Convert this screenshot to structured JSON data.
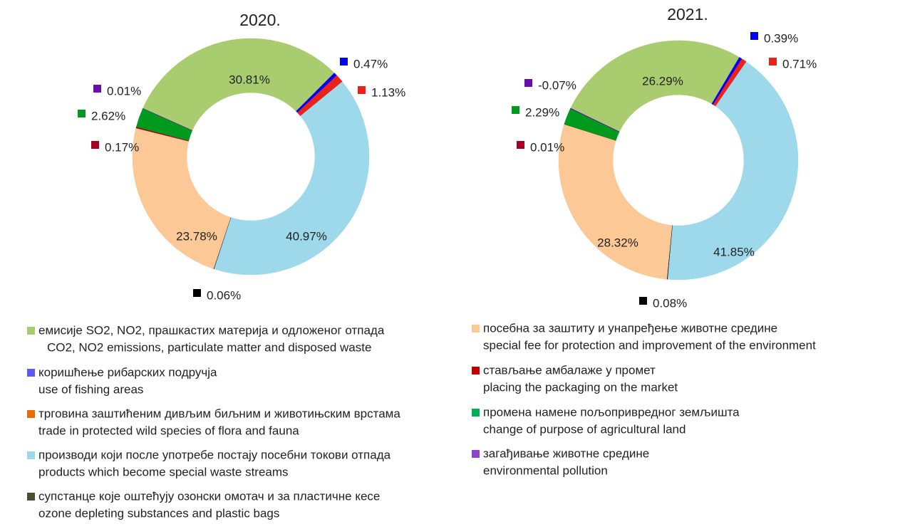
{
  "chart_data": [
    {
      "type": "pie",
      "donut": true,
      "title": "2020.",
      "values": [
        30.81,
        0.47,
        1.13,
        40.97,
        0.06,
        23.78,
        0.17,
        2.62,
        0.01
      ],
      "value_labels": [
        "30.81%",
        "0.47%",
        "1.13%",
        "40.97%",
        "0.06%",
        "23.78%",
        "0.17%",
        "2.62%",
        "0.01%"
      ],
      "colors": [
        "#a9cc6e",
        "#0000ff",
        "#e8231c",
        "#9dd9ea",
        "#000000",
        "#fbc896",
        "#a50021",
        "#009a1c",
        "#6a0dad"
      ]
    },
    {
      "type": "pie",
      "donut": true,
      "title": "2021.",
      "values": [
        26.29,
        0.39,
        0.71,
        41.85,
        0.08,
        28.32,
        0.01,
        2.29,
        -0.07
      ],
      "value_labels": [
        "26.29%",
        "0.39%",
        "0.71%",
        "41.85%",
        "0.08%",
        "28.32%",
        "0.01%",
        "2.29%",
        "-0.07%"
      ],
      "colors": [
        "#a9cc6e",
        "#0000ff",
        "#e8231c",
        "#9dd9ea",
        "#000000",
        "#fbc896",
        "#a50021",
        "#009a1c",
        "#6a0dad"
      ]
    }
  ],
  "legend": {
    "items": [
      {
        "name": "емисије SO2, NO2, прашкастих материја и одложеног отпада",
        "name_en": "CO2, NO2 emissions, particulate matter and disposed waste",
        "color": "#a9cc6e"
      },
      {
        "name": "коришћење  рибарских подручја",
        "name_en": "use of fishing areas",
        "color": "#5b5bf0"
      },
      {
        "name": "трговина заштићеним дивљим биљним и животињским врстама",
        "name_en": "trade in protected  wild species of flora and fauna",
        "color": "#e46c0a"
      },
      {
        "name": "производи који после употребе постају посебни токови отпада",
        "name_en": "products which become  special waste streams",
        "color": "#9dd9ea"
      },
      {
        "name": "супстанце које оштећују озонски омотач и за пластичне кесе",
        "name_en": "ozone depleting substances and plastic bags",
        "color": "#4d4d33"
      },
      {
        "name": "посебна за заштиту и унапређење животне средине",
        "name_en": "special fee for protection and improvement of the environment",
        "color": "#fbc896"
      },
      {
        "name": "стављање амбалаже у промет",
        "name_en": "placing the packaging on the market",
        "color": "#c00000"
      },
      {
        "name": "промена намене пољопривредног  земљишта",
        "name_en": "change of purpose of agricultural land",
        "color": "#00b050"
      },
      {
        "name": "загађивање животне средине",
        "name_en": "environmental pollution",
        "color": "#8e44c9"
      }
    ]
  }
}
